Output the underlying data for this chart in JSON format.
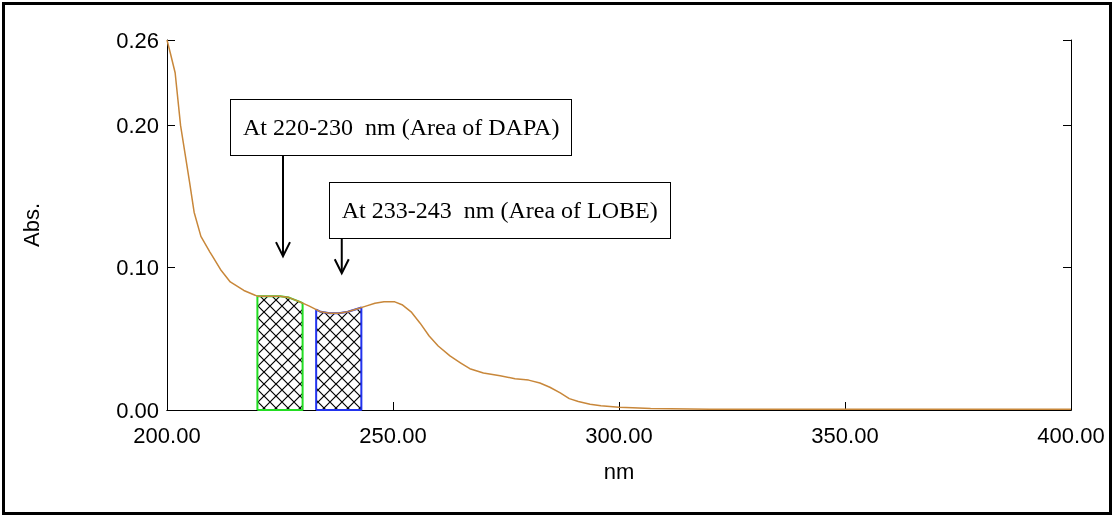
{
  "chart_data": {
    "type": "line",
    "xlabel": "nm",
    "ylabel": "Abs.",
    "color": "#c8873a",
    "x": [
      200,
      200.8,
      201.8,
      203,
      204,
      205,
      206,
      207.5,
      209.5,
      212,
      214,
      217,
      220,
      222.5,
      225,
      227,
      229.4,
      231.5,
      234,
      236,
      238,
      240,
      242,
      244,
      246,
      248,
      250.4,
      252,
      254,
      256,
      258,
      260,
      262.6,
      265,
      267,
      270,
      273.7,
      277,
      280,
      282.5,
      284.7,
      287,
      289,
      291,
      293.6,
      296,
      300,
      303,
      307,
      320,
      350,
      380,
      400
    ],
    "values": [
      0.26,
      0.25,
      0.237,
      0.2,
      0.18,
      0.16,
      0.139,
      0.122,
      0.111,
      0.098,
      0.09,
      0.084,
      0.08,
      0.08,
      0.08,
      0.079,
      0.076,
      0.073,
      0.069,
      0.068,
      0.068,
      0.069,
      0.071,
      0.073,
      0.075,
      0.076,
      0.076,
      0.074,
      0.069,
      0.061,
      0.052,
      0.045,
      0.038,
      0.033,
      0.029,
      0.026,
      0.024,
      0.022,
      0.021,
      0.019,
      0.016,
      0.012,
      0.008,
      0.006,
      0.004,
      0.003,
      0.002,
      0.0015,
      0.001,
      0.0005,
      0.0005,
      0.0005,
      0.0005
    ],
    "xlim": [
      200,
      400
    ],
    "xticks": [
      {
        "value": 200,
        "label": "200.00"
      },
      {
        "value": 250,
        "label": "250.00"
      },
      {
        "value": 300,
        "label": "300.00"
      },
      {
        "value": 350,
        "label": "350.00"
      },
      {
        "value": 400,
        "label": "400.00"
      }
    ],
    "ylim": [
      0,
      0.26
    ],
    "yticks": [
      {
        "value": 0,
        "label": "0.00"
      },
      {
        "value": 0.1,
        "label": "0.10"
      },
      {
        "value": 0.2,
        "label": "0.20"
      },
      {
        "value": 0.26,
        "label": "0.26"
      }
    ],
    "bands": [
      {
        "axis": "x",
        "from": 220,
        "to": 230,
        "color": "#22dd22"
      },
      {
        "axis": "x",
        "from": 233,
        "to": 243,
        "color": "#2233ee"
      }
    ],
    "annotations": [
      "At 220-230  nm (Area of DAPA)",
      "At 233-243  nm (Area of LOBE)"
    ]
  }
}
